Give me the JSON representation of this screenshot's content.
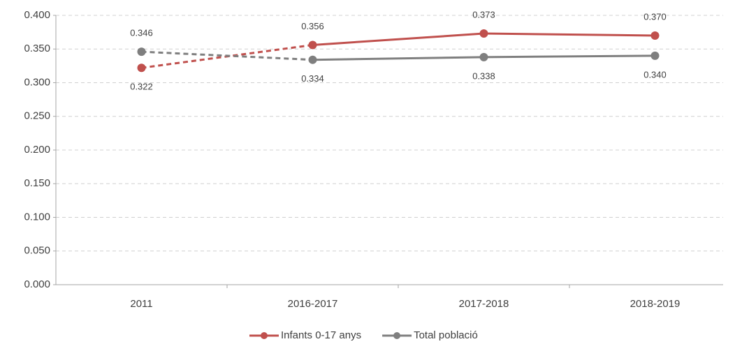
{
  "chart_data": {
    "type": "line",
    "categories": [
      "2011",
      "2016-2017",
      "2017-2018",
      "2018-2019"
    ],
    "series": [
      {
        "name": "Infants 0-17 anys",
        "color": "#c0504d",
        "values": [
          0.322,
          0.356,
          0.373,
          0.37
        ],
        "value_labels": [
          "0.322",
          "0.356",
          "0.373",
          "0.370"
        ],
        "dashed_segments": [
          0
        ]
      },
      {
        "name": "Total població",
        "color": "#7f7f7f",
        "values": [
          0.346,
          0.334,
          0.338,
          0.34
        ],
        "value_labels": [
          "0.346",
          "0.334",
          "0.338",
          "0.340"
        ],
        "dashed_segments": [
          0
        ]
      }
    ],
    "ylim": [
      0,
      0.4
    ],
    "yticks": [
      {
        "value": 0,
        "label": "0.000"
      },
      {
        "value": 0.05,
        "label": "0.050"
      },
      {
        "value": 0.1,
        "label": "0.100"
      },
      {
        "value": 0.15,
        "label": "0.150"
      },
      {
        "value": 0.2,
        "label": "0.200"
      },
      {
        "value": 0.25,
        "label": "0.250"
      },
      {
        "value": 0.3,
        "label": "0.300"
      },
      {
        "value": 0.35,
        "label": "0.350"
      },
      {
        "value": 0.4,
        "label": "0.400"
      }
    ],
    "grid": true,
    "legend": "bottom"
  }
}
